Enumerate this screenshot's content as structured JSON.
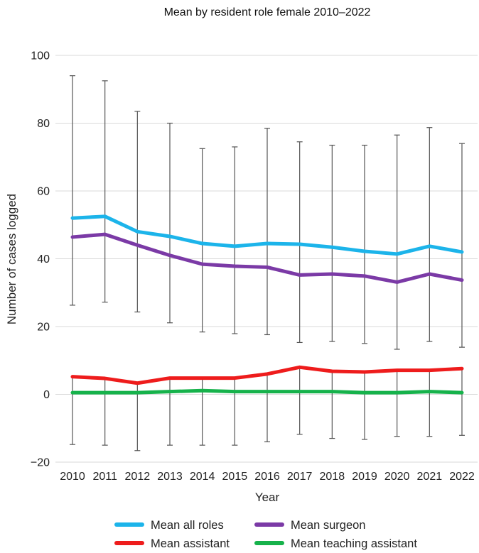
{
  "chart_data": {
    "type": "line",
    "title": "Mean by resident role female 2010–2022",
    "xlabel": "Year",
    "ylabel": "Number of cases logged",
    "ylim": [
      -20,
      100
    ],
    "yticks": [
      -20,
      0,
      20,
      40,
      60,
      80,
      100
    ],
    "ytick_labels": [
      "−20",
      "0",
      "20",
      "40",
      "60",
      "80",
      "100"
    ],
    "grid": true,
    "legend_position": "bottom",
    "categories": [
      "2010",
      "2011",
      "2012",
      "2013",
      "2014",
      "2015",
      "2016",
      "2017",
      "2018",
      "2019",
      "2020",
      "2021",
      "2022"
    ],
    "series": [
      {
        "name": "Mean all roles",
        "color": "#1cb4ea",
        "values": [
          52,
          52.5,
          48,
          46.6,
          44.5,
          43.7,
          44.5,
          44.3,
          43.4,
          42.2,
          41.4,
          43.7,
          42
        ],
        "error_upper": [
          94,
          92.5,
          83.5,
          80,
          72.5,
          73,
          78.5,
          74.5,
          73.5,
          73.5,
          76.5,
          78.7,
          74
        ],
        "error_lower": [
          26.3,
          27.2,
          24.3,
          21.1,
          18.4,
          17.9,
          17.6,
          15.3,
          15.6,
          15,
          13.3,
          15.6,
          13.9
        ]
      },
      {
        "name": "Mean surgeon",
        "color": "#7b3aa6",
        "values": [
          46.4,
          47.2,
          44,
          41,
          38.4,
          37.8,
          37.5,
          35.2,
          35.5,
          34.9,
          33.1,
          35.5,
          33.7
        ]
      },
      {
        "name": "Mean assistant",
        "color": "#ee1c1c",
        "values": [
          5.2,
          4.7,
          3.3,
          4.8,
          4.8,
          4.8,
          6,
          8,
          6.8,
          6.6,
          7.1,
          7.1,
          7.6
        ],
        "error_lower": [
          -14.8,
          -15,
          -16.6,
          -15,
          -15,
          -15,
          -14,
          -11.8,
          -13,
          -13.3,
          -12.4,
          -12.4,
          -12.1
        ]
      },
      {
        "name": "Mean teaching assistant",
        "color": "#16b24b",
        "values": [
          0.5,
          0.5,
          0.5,
          0.8,
          1.1,
          0.8,
          0.8,
          0.8,
          0.8,
          0.5,
          0.5,
          0.8,
          0.5
        ]
      }
    ],
    "legend": [
      "Mean all roles",
      "Mean surgeon",
      "Mean assistant",
      "Mean teaching assistant"
    ]
  }
}
